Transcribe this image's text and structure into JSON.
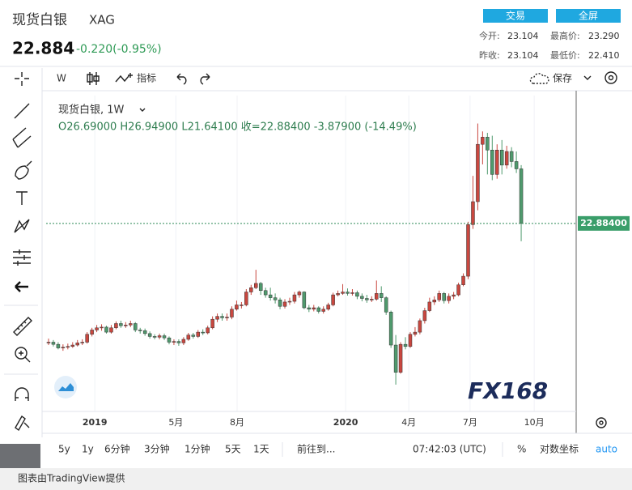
{
  "header": {
    "name": "现货白银",
    "symbol": "XAG",
    "price": "22.884",
    "change": "-0.220(-0.95%)",
    "buttons": [
      "交易",
      "全屏"
    ],
    "stats": [
      {
        "label": "今开:",
        "value": "23.104"
      },
      {
        "label": "最高价:",
        "value": "23.290"
      },
      {
        "label": "昨收:",
        "value": "23.104"
      },
      {
        "label": "最低价:",
        "value": "22.410"
      }
    ]
  },
  "toolbar": {
    "interval": "W",
    "indicators": "指标",
    "save": "保存"
  },
  "chart_data": {
    "type": "candlestick",
    "legend_title": "现货白银, 1W",
    "ohlc_text": "O26.69000 H26.94900 L21.64100 收=22.88400 -3.87900 (-14.49%)",
    "up_color": "#c9473f",
    "down_color": "#4f9a6d",
    "open": [
      14.55,
      14.6,
      14.45,
      14.2,
      14.25,
      14.3,
      14.4,
      14.55,
      14.6,
      15.15,
      15.45,
      15.6,
      15.65,
      15.3,
      15.6,
      15.9,
      15.75,
      15.8,
      15.9,
      15.45,
      15.4,
      15.2,
      15.0,
      14.95,
      15.05,
      14.9,
      14.6,
      14.65,
      14.55,
      14.8,
      15.1,
      15.0,
      15.3,
      15.25,
      15.6,
      16.2,
      16.4,
      16.3,
      16.35,
      16.9,
      17.2,
      17.2,
      18.1,
      18.4,
      18.7,
      18.2,
      17.9,
      17.7,
      17.55,
      17.1,
      17.4,
      17.45,
      17.9,
      18.1,
      17.0,
      16.9,
      17.0,
      16.75,
      16.9,
      17.2,
      17.9,
      18.0,
      18.1,
      18.0,
      18.05,
      17.8,
      17.65,
      17.55,
      17.6,
      18.0,
      17.7,
      16.7,
      14.4,
      12.5,
      14.45,
      14.3,
      15.15,
      15.3,
      16.1,
      16.8,
      17.4,
      17.55,
      18.0,
      17.5,
      17.8,
      17.9,
      18.6,
      19.2,
      22.8,
      24.4,
      28.4,
      28.9,
      28.0,
      26.3,
      28.0,
      26.95,
      27.9,
      27.2,
      26.69
    ],
    "high": [
      14.85,
      14.75,
      14.6,
      14.45,
      14.5,
      14.6,
      14.75,
      14.8,
      15.3,
      15.6,
      15.8,
      15.85,
      15.75,
      15.8,
      16.05,
      16.1,
      16.0,
      16.1,
      16.0,
      15.6,
      15.55,
      15.35,
      15.15,
      15.2,
      15.2,
      15.0,
      14.8,
      14.8,
      14.95,
      15.25,
      15.25,
      15.45,
      15.5,
      15.75,
      16.4,
      16.6,
      16.6,
      16.6,
      17.1,
      17.5,
      17.4,
      18.3,
      18.6,
      19.65,
      18.8,
      18.4,
      18.4,
      18.0,
      17.7,
      17.6,
      17.7,
      18.1,
      18.2,
      18.15,
      17.2,
      17.2,
      17.1,
      17.1,
      17.35,
      18.05,
      18.2,
      18.65,
      18.35,
      18.3,
      18.2,
      18.0,
      17.9,
      17.8,
      18.9,
      18.5,
      17.8,
      16.8,
      15.1,
      14.6,
      14.95,
      15.3,
      15.65,
      16.25,
      17.0,
      17.7,
      17.8,
      18.2,
      18.1,
      18.0,
      18.1,
      18.75,
      19.4,
      23.0,
      26.2,
      29.85,
      29.3,
      29.2,
      29.0,
      28.4,
      28.7,
      28.3,
      28.2,
      27.9,
      26.949
    ],
    "low": [
      14.4,
      14.3,
      14.1,
      14.0,
      14.1,
      14.2,
      14.3,
      14.4,
      14.5,
      15.0,
      15.3,
      15.4,
      15.2,
      15.2,
      15.5,
      15.6,
      15.6,
      15.65,
      15.3,
      15.2,
      15.05,
      14.85,
      14.8,
      14.8,
      14.75,
      14.45,
      14.4,
      14.35,
      14.4,
      14.7,
      14.85,
      14.9,
      15.1,
      15.15,
      15.5,
      16.0,
      16.1,
      16.1,
      16.2,
      16.8,
      16.95,
      17.1,
      17.9,
      18.3,
      17.9,
      17.7,
      17.5,
      17.3,
      16.9,
      16.95,
      17.2,
      17.3,
      17.7,
      16.9,
      16.7,
      16.75,
      16.6,
      16.6,
      16.8,
      17.1,
      17.8,
      17.9,
      17.85,
      17.85,
      17.6,
      17.45,
      17.35,
      17.4,
      17.5,
      17.4,
      16.5,
      14.2,
      11.64,
      12.4,
      14.1,
      14.2,
      15.0,
      15.15,
      15.9,
      16.7,
      17.2,
      17.4,
      17.3,
      17.3,
      17.6,
      17.8,
      18.5,
      19.0,
      22.5,
      23.8,
      27.0,
      26.3,
      25.9,
      26.0,
      26.3,
      26.7,
      26.8,
      26.4,
      21.641
    ],
    "close": [
      14.6,
      14.45,
      14.2,
      14.25,
      14.3,
      14.4,
      14.55,
      14.6,
      15.15,
      15.45,
      15.6,
      15.65,
      15.3,
      15.6,
      15.9,
      15.75,
      15.8,
      15.9,
      15.45,
      15.4,
      15.2,
      15.0,
      14.95,
      15.05,
      14.9,
      14.6,
      14.65,
      14.55,
      14.8,
      15.1,
      15.0,
      15.3,
      15.25,
      15.6,
      16.2,
      16.4,
      16.3,
      16.35,
      16.9,
      17.2,
      17.2,
      18.1,
      18.4,
      18.7,
      18.2,
      17.9,
      17.7,
      17.55,
      17.1,
      17.4,
      17.45,
      17.9,
      18.1,
      17.0,
      16.9,
      17.0,
      16.75,
      16.9,
      17.2,
      17.9,
      18.0,
      18.1,
      18.0,
      18.05,
      17.8,
      17.65,
      17.55,
      17.6,
      18.0,
      17.7,
      16.7,
      14.4,
      12.5,
      14.45,
      14.3,
      15.15,
      15.3,
      16.1,
      16.8,
      17.4,
      17.55,
      18.0,
      17.5,
      17.8,
      17.9,
      18.6,
      19.2,
      22.8,
      24.4,
      28.4,
      28.9,
      28.0,
      26.3,
      28.0,
      26.95,
      27.9,
      27.2,
      26.69,
      22.884
    ],
    "xlim": [
      -0.5,
      109.4
    ],
    "xticks": [
      {
        "value": 9.6,
        "label": "2019"
      },
      {
        "value": 26.4,
        "label": "5月"
      },
      {
        "value": 39.1,
        "label": "8月"
      },
      {
        "value": 61.6,
        "label": "2020"
      },
      {
        "value": 74.7,
        "label": "4月"
      },
      {
        "value": 87.4,
        "label": "7月"
      },
      {
        "value": 100.7,
        "label": "10月"
      }
    ],
    "ylim": [
      9.77,
      31.8
    ],
    "last_price": {
      "value": 22.884,
      "label": "22.88400"
    },
    "watermark": "FX168"
  },
  "bottom_bar": {
    "ranges": [
      "5y",
      "1y",
      "6分钟",
      "3分钟",
      "1分钟",
      "5天",
      "1天"
    ],
    "goto": "前往到...",
    "time": "07:42:03 (UTC)",
    "percent": "%",
    "log": "对数坐标",
    "auto": "auto"
  },
  "footer": "图表由TradingView提供"
}
